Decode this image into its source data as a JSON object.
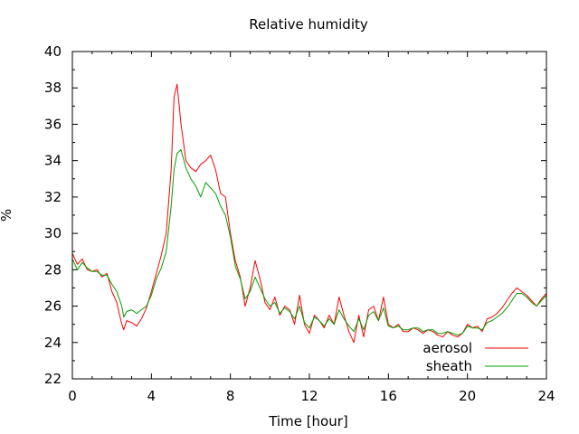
{
  "chart_data": {
    "type": "line",
    "title": "Relative humidity",
    "xlabel": "Time [hour]",
    "ylabel": "%",
    "xlim": [
      0,
      24
    ],
    "ylim": [
      22,
      40
    ],
    "xticks": [
      0,
      4,
      8,
      12,
      16,
      20,
      24
    ],
    "yticks": [
      22,
      24,
      26,
      28,
      30,
      32,
      34,
      36,
      38,
      40
    ],
    "x_tick_labels": [
      "0",
      "4",
      "8",
      "12",
      "16",
      "20",
      "24"
    ],
    "y_tick_labels": [
      "22",
      "24",
      "26",
      "28",
      "30",
      "32",
      "34",
      "36",
      "38",
      "40"
    ],
    "grid": false,
    "legend": "bottom-right",
    "series": [
      {
        "name": "aerosol",
        "color": "#ff0000",
        "x": [
          0.0,
          0.25,
          0.5,
          0.75,
          1.0,
          1.25,
          1.5,
          1.75,
          2.0,
          2.25,
          2.5,
          2.6,
          2.75,
          3.0,
          3.25,
          3.5,
          3.75,
          4.0,
          4.25,
          4.5,
          4.75,
          5.0,
          5.15,
          5.3,
          5.5,
          5.75,
          6.0,
          6.25,
          6.5,
          6.75,
          7.0,
          7.25,
          7.5,
          7.75,
          8.0,
          8.25,
          8.5,
          8.75,
          9.0,
          9.25,
          9.5,
          9.75,
          10.0,
          10.25,
          10.5,
          10.75,
          11.0,
          11.25,
          11.5,
          11.75,
          12.0,
          12.25,
          12.5,
          12.75,
          13.0,
          13.25,
          13.5,
          13.75,
          14.0,
          14.25,
          14.5,
          14.75,
          15.0,
          15.25,
          15.5,
          15.75,
          16.0,
          16.25,
          16.5,
          16.75,
          17.0,
          17.25,
          17.5,
          17.75,
          18.0,
          18.25,
          18.5,
          18.75,
          19.0,
          19.25,
          19.5,
          19.75,
          20.0,
          20.25,
          20.5,
          20.75,
          21.0,
          21.25,
          21.5,
          21.75,
          22.0,
          22.25,
          22.5,
          22.75,
          23.0,
          23.25,
          23.5,
          23.75,
          24.0
        ],
        "values": [
          28.9,
          28.3,
          28.6,
          28.0,
          27.9,
          28.0,
          27.6,
          27.8,
          26.8,
          26.2,
          25.0,
          24.7,
          25.2,
          25.1,
          24.9,
          25.3,
          25.9,
          26.8,
          27.8,
          28.8,
          30.0,
          33.5,
          37.5,
          38.2,
          36.0,
          34.0,
          33.6,
          33.4,
          33.8,
          34.0,
          34.3,
          33.5,
          32.2,
          32.0,
          30.0,
          28.5,
          27.6,
          26.0,
          27.0,
          28.5,
          27.5,
          26.2,
          25.8,
          26.5,
          25.5,
          26.0,
          25.8,
          25.0,
          26.6,
          25.0,
          24.5,
          25.5,
          25.2,
          24.8,
          25.5,
          25.0,
          26.5,
          25.5,
          24.6,
          24.0,
          25.5,
          24.3,
          25.8,
          26.0,
          25.2,
          26.5,
          25.0,
          24.8,
          25.0,
          24.6,
          24.6,
          24.8,
          24.7,
          24.5,
          24.7,
          24.6,
          24.4,
          24.3,
          24.6,
          24.4,
          24.3,
          24.5,
          25.0,
          24.8,
          24.9,
          24.6,
          25.3,
          25.4,
          25.6,
          25.9,
          26.3,
          26.7,
          27.0,
          26.8,
          26.6,
          26.3,
          26.0,
          26.4,
          26.7
        ]
      },
      {
        "name": "sheath",
        "color": "#00a000",
        "x": [
          0.0,
          0.25,
          0.5,
          0.75,
          1.0,
          1.25,
          1.5,
          1.75,
          2.0,
          2.25,
          2.5,
          2.6,
          2.75,
          3.0,
          3.25,
          3.5,
          3.75,
          4.0,
          4.25,
          4.5,
          4.75,
          5.0,
          5.15,
          5.3,
          5.5,
          5.75,
          6.0,
          6.25,
          6.5,
          6.75,
          7.0,
          7.25,
          7.5,
          7.75,
          8.0,
          8.25,
          8.5,
          8.75,
          9.0,
          9.25,
          9.5,
          9.75,
          10.0,
          10.25,
          10.5,
          10.75,
          11.0,
          11.25,
          11.5,
          11.75,
          12.0,
          12.25,
          12.5,
          12.75,
          13.0,
          13.25,
          13.5,
          13.75,
          14.0,
          14.25,
          14.5,
          14.75,
          15.0,
          15.25,
          15.5,
          15.75,
          16.0,
          16.25,
          16.5,
          16.75,
          17.0,
          17.25,
          17.5,
          17.75,
          18.0,
          18.25,
          18.5,
          18.75,
          19.0,
          19.25,
          19.5,
          19.75,
          20.0,
          20.25,
          20.5,
          20.75,
          21.0,
          21.25,
          21.5,
          21.75,
          22.0,
          22.25,
          22.5,
          22.75,
          23.0,
          23.25,
          23.5,
          23.75,
          24.0
        ],
        "values": [
          28.6,
          28.0,
          28.4,
          28.1,
          27.9,
          27.9,
          27.7,
          27.7,
          27.2,
          26.8,
          26.0,
          25.4,
          25.7,
          25.8,
          25.6,
          25.8,
          26.0,
          26.6,
          27.5,
          28.1,
          29.0,
          31.5,
          33.5,
          34.4,
          34.6,
          33.6,
          33.0,
          32.6,
          32.0,
          32.8,
          32.5,
          32.2,
          31.5,
          31.0,
          29.8,
          28.2,
          27.5,
          26.4,
          26.8,
          27.6,
          27.0,
          26.4,
          26.0,
          26.2,
          25.6,
          25.9,
          25.7,
          25.3,
          26.0,
          25.1,
          24.8,
          25.4,
          25.2,
          24.9,
          25.3,
          25.0,
          25.8,
          25.3,
          24.9,
          24.6,
          25.3,
          24.7,
          25.5,
          25.7,
          25.2,
          25.9,
          24.9,
          24.8,
          24.9,
          24.7,
          24.7,
          24.8,
          24.8,
          24.6,
          24.7,
          24.7,
          24.5,
          24.5,
          24.6,
          24.5,
          24.4,
          24.5,
          24.9,
          24.8,
          24.8,
          24.7,
          25.1,
          25.2,
          25.4,
          25.6,
          25.9,
          26.3,
          26.7,
          26.7,
          26.5,
          26.2,
          26.0,
          26.3,
          26.6
        ]
      }
    ]
  }
}
